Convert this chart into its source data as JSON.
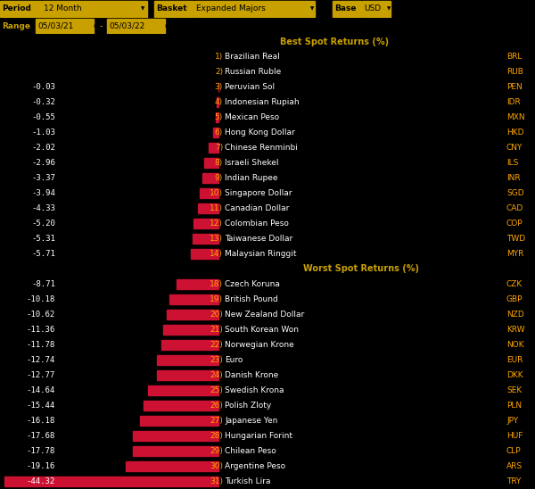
{
  "background_color": "#000000",
  "header_bg": "#c8a000",
  "best_title": "Best Spot Returns (%)",
  "worst_title": "Worst Spot Returns (%)",
  "best_entries": [
    {
      "rank": 1,
      "name": "Brazilian Real",
      "code": "BRL",
      "value": 0.0
    },
    {
      "rank": 2,
      "name": "Russian Ruble",
      "code": "RUB",
      "value": 0.0
    },
    {
      "rank": 3,
      "name": "Peruvian Sol",
      "code": "PEN",
      "value": -0.03
    },
    {
      "rank": 4,
      "name": "Indonesian Rupiah",
      "code": "IDR",
      "value": -0.32
    },
    {
      "rank": 5,
      "name": "Mexican Peso",
      "code": "MXN",
      "value": -0.55
    },
    {
      "rank": 6,
      "name": "Hong Kong Dollar",
      "code": "HKD",
      "value": -1.03
    },
    {
      "rank": 7,
      "name": "Chinese Renminbi",
      "code": "CNY",
      "value": -2.02
    },
    {
      "rank": 8,
      "name": "Israeli Shekel",
      "code": "ILS",
      "value": -2.96
    },
    {
      "rank": 9,
      "name": "Indian Rupee",
      "code": "INR",
      "value": -3.37
    },
    {
      "rank": 10,
      "name": "Singapore Dollar",
      "code": "SGD",
      "value": -3.94
    },
    {
      "rank": 11,
      "name": "Canadian Dollar",
      "code": "CAD",
      "value": -4.33
    },
    {
      "rank": 12,
      "name": "Colombian Peso",
      "code": "COP",
      "value": -5.2
    },
    {
      "rank": 13,
      "name": "Taiwanese Dollar",
      "code": "TWD",
      "value": -5.31
    },
    {
      "rank": 14,
      "name": "Malaysian Ringgit",
      "code": "MYR",
      "value": -5.71
    }
  ],
  "worst_entries": [
    {
      "rank": 18,
      "name": "Czech Koruna",
      "code": "CZK",
      "value": -8.71
    },
    {
      "rank": 19,
      "name": "British Pound",
      "code": "GBP",
      "value": -10.18
    },
    {
      "rank": 20,
      "name": "New Zealand Dollar",
      "code": "NZD",
      "value": -10.62
    },
    {
      "rank": 21,
      "name": "South Korean Won",
      "code": "KRW",
      "value": -11.36
    },
    {
      "rank": 22,
      "name": "Norwegian Krone",
      "code": "NOK",
      "value": -11.78
    },
    {
      "rank": 23,
      "name": "Euro",
      "code": "EUR",
      "value": -12.74
    },
    {
      "rank": 24,
      "name": "Danish Krone",
      "code": "DKK",
      "value": -12.77
    },
    {
      "rank": 25,
      "name": "Swedish Krona",
      "code": "SEK",
      "value": -14.64
    },
    {
      "rank": 26,
      "name": "Polish Zloty",
      "code": "PLN",
      "value": -15.44
    },
    {
      "rank": 27,
      "name": "Japanese Yen",
      "code": "JPY",
      "value": -16.18
    },
    {
      "rank": 28,
      "name": "Hungarian Forint",
      "code": "HUF",
      "value": -17.68
    },
    {
      "rank": 29,
      "name": "Chilean Peso",
      "code": "CLP",
      "value": -17.78
    },
    {
      "rank": 30,
      "name": "Argentine Peso",
      "code": "ARS",
      "value": -19.16
    },
    {
      "rank": 31,
      "name": "Turkish Lira",
      "code": "TRY",
      "value": -44.32
    }
  ],
  "bar_color": "#cc1133",
  "value_color": "#ffffff",
  "name_color": "#ffffff",
  "code_color": "#ffa500",
  "section_header_color": "#c8a000",
  "rank_color": "#ffa500",
  "period_label": "Period",
  "period_value": "12 Month",
  "basket_label": "Basket",
  "basket_value": "Expanded Majors",
  "base_label": "Base",
  "base_value": "USD",
  "range_label": "Range",
  "range_start": "05/03/21",
  "range_end": "05/03/22"
}
